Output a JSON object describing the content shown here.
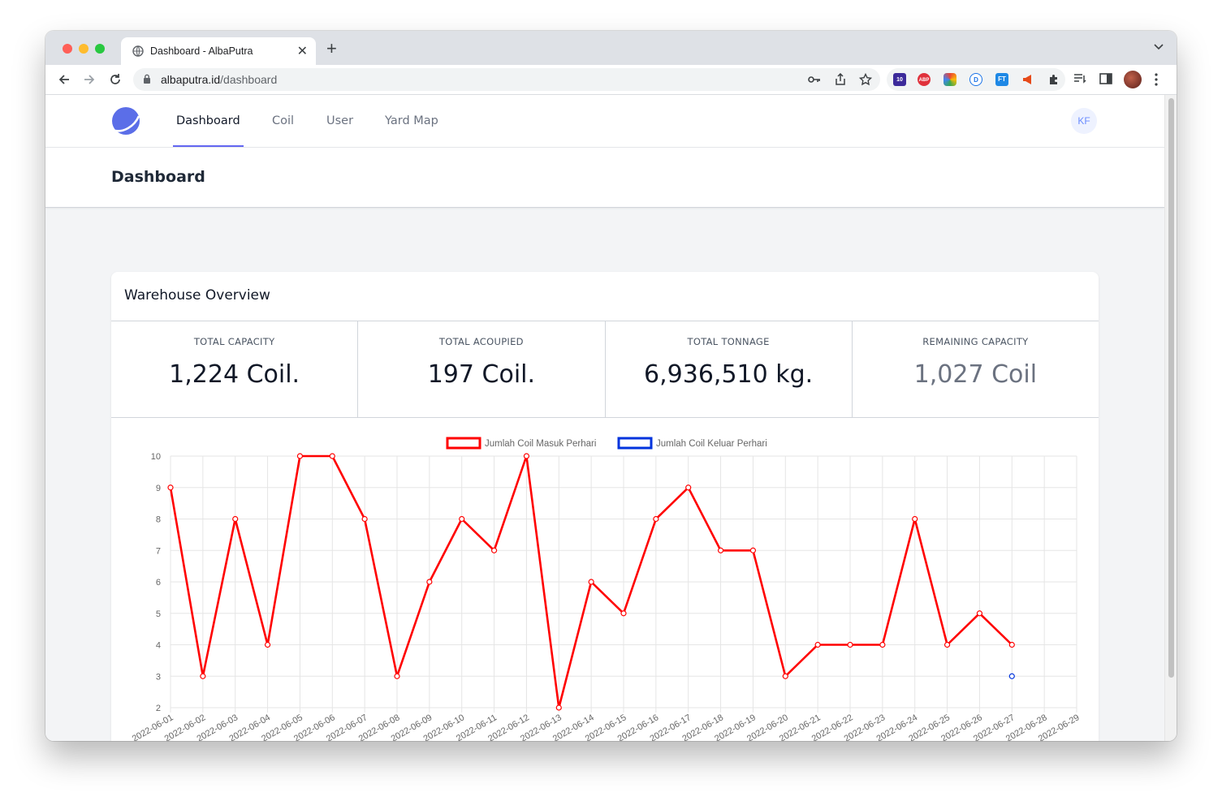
{
  "browser": {
    "tab_title": "Dashboard - AlbaPutra",
    "url_host": "albaputra.id",
    "url_path": "/dashboard",
    "ext_badge": "10",
    "ext_abp": "ABP",
    "ext_d": "D",
    "ext_ft": "FT"
  },
  "nav": {
    "items": [
      {
        "label": "Dashboard",
        "active": true
      },
      {
        "label": "Coil",
        "active": false
      },
      {
        "label": "User",
        "active": false
      },
      {
        "label": "Yard Map",
        "active": false
      }
    ],
    "user_initials": "KF"
  },
  "header": {
    "title": "Dashboard"
  },
  "overview": {
    "title": "Warehouse Overview",
    "stats": [
      {
        "label": "TOTAL CAPACITY",
        "value": "1,224 Coil."
      },
      {
        "label": "TOTAL ACOUPIED",
        "value": "197 Coil."
      },
      {
        "label": "TOTAL TONNAGE",
        "value": "6,936,510 kg."
      },
      {
        "label": "REMAINING CAPACITY",
        "value": "1,027 Coil"
      }
    ]
  },
  "chart_data": {
    "type": "line",
    "x": [
      "2022-06-01",
      "2022-06-02",
      "2022-06-03",
      "2022-06-04",
      "2022-06-05",
      "2022-06-06",
      "2022-06-07",
      "2022-06-08",
      "2022-06-09",
      "2022-06-10",
      "2022-06-11",
      "2022-06-12",
      "2022-06-13",
      "2022-06-14",
      "2022-06-15",
      "2022-06-16",
      "2022-06-17",
      "2022-06-18",
      "2022-06-19",
      "2022-06-20",
      "2022-06-21",
      "2022-06-22",
      "2022-06-23",
      "2022-06-24",
      "2022-06-25",
      "2022-06-26",
      "2022-06-27",
      "2022-06-28",
      "2022-06-29"
    ],
    "series": [
      {
        "name": "Jumlah Coil Masuk Perhari",
        "color": "#ff0000",
        "values": [
          9,
          3,
          8,
          4,
          10,
          10,
          8,
          3,
          6,
          8,
          7,
          10,
          2,
          6,
          5,
          8,
          9,
          7,
          7,
          3,
          4,
          4,
          4,
          8,
          4,
          5,
          4,
          null,
          null
        ]
      },
      {
        "name": "Jumlah Coil Keluar Perhari",
        "color": "#0033dd",
        "values": [
          null,
          null,
          null,
          null,
          null,
          null,
          null,
          null,
          null,
          null,
          null,
          null,
          null,
          null,
          null,
          null,
          null,
          null,
          null,
          null,
          null,
          null,
          null,
          null,
          null,
          null,
          3,
          null,
          null
        ]
      }
    ],
    "ylim": [
      2,
      10
    ],
    "yticks": [
      "10",
      "9",
      "8",
      "7",
      "6",
      "5",
      "4",
      "3",
      "2"
    ],
    "grid": true,
    "legend": "top"
  }
}
